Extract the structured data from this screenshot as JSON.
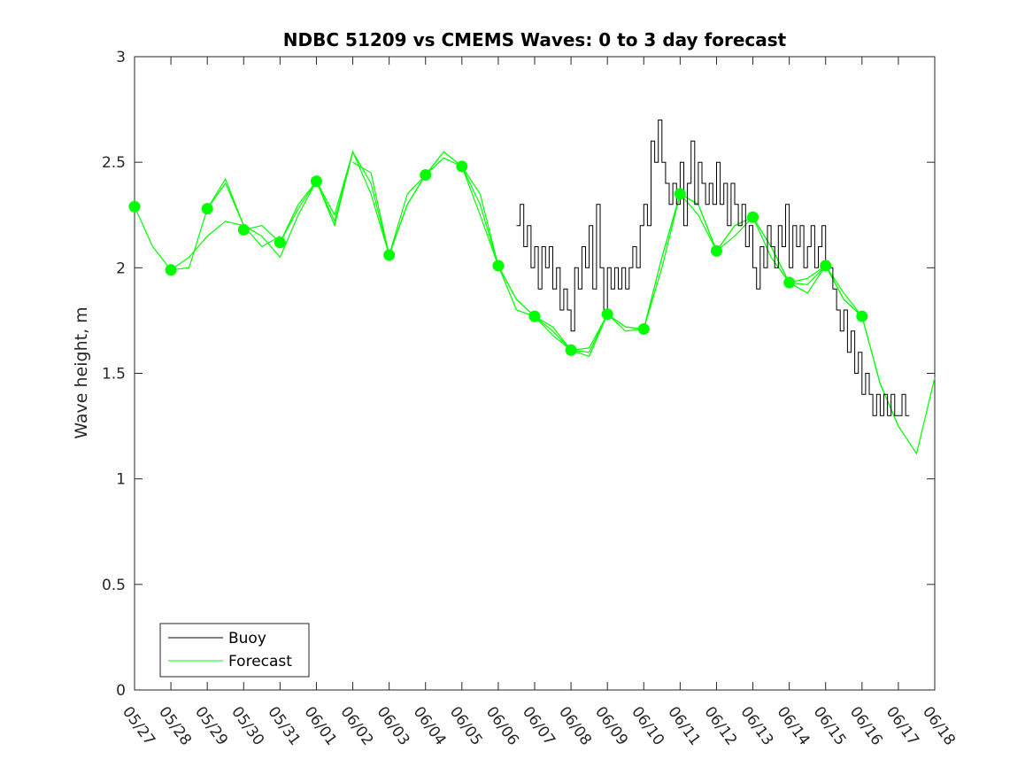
{
  "chart_data": {
    "type": "line",
    "title": "NDBC 51209 vs CMEMS Waves: 0 to 3 day forecast",
    "xlabel": "",
    "ylabel": "Wave height, m",
    "x_tick_labels": [
      "05/27",
      "05/28",
      "05/29",
      "05/30",
      "05/31",
      "06/01",
      "06/02",
      "06/03",
      "06/04",
      "06/05",
      "06/06",
      "06/07",
      "06/08",
      "06/09",
      "06/10",
      "06/11",
      "06/12",
      "06/13",
      "06/14",
      "06/15",
      "06/16",
      "06/17",
      "06/18"
    ],
    "y_tick_labels": [
      "0",
      "0.5",
      "1",
      "1.5",
      "2",
      "2.5",
      "3"
    ],
    "ylim": [
      0,
      3
    ],
    "xlim_days": [
      0,
      22
    ],
    "grid": false,
    "legend": {
      "placement": "bottom-left",
      "entries": [
        "Buoy",
        "Forecast"
      ]
    },
    "colors": {
      "buoy": "#000000",
      "forecast": "#00ff00"
    },
    "series": [
      {
        "name": "Buoy",
        "x": [
          10.5,
          10.6,
          10.7,
          10.8,
          10.9,
          11.0,
          11.1,
          11.2,
          11.3,
          11.4,
          11.5,
          11.6,
          11.7,
          11.8,
          11.9,
          12.0,
          12.1,
          12.2,
          12.3,
          12.4,
          12.5,
          12.6,
          12.7,
          12.8,
          12.9,
          13.0,
          13.1,
          13.2,
          13.3,
          13.4,
          13.5,
          13.6,
          13.7,
          13.8,
          13.9,
          14.0,
          14.1,
          14.2,
          14.3,
          14.4,
          14.5,
          14.6,
          14.7,
          14.8,
          14.9,
          15.0,
          15.1,
          15.2,
          15.3,
          15.4,
          15.5,
          15.6,
          15.7,
          15.8,
          15.9,
          16.0,
          16.1,
          16.2,
          16.3,
          16.4,
          16.5,
          16.6,
          16.7,
          16.8,
          16.9,
          17.0,
          17.1,
          17.2,
          17.3,
          17.4,
          17.5,
          17.6,
          17.7,
          17.8,
          17.9,
          18.0,
          18.1,
          18.2,
          18.3,
          18.4,
          18.5,
          18.6,
          18.7,
          18.8,
          18.9,
          19.0,
          19.1,
          19.2,
          19.3,
          19.4,
          19.5,
          19.6,
          19.7,
          19.8,
          19.9,
          20.0,
          20.1,
          20.2,
          20.3,
          20.4,
          20.5,
          20.6,
          20.7,
          20.8,
          20.9,
          21.0,
          21.1,
          21.2,
          21.3
        ],
        "y": [
          2.2,
          2.3,
          2.1,
          2.2,
          2.0,
          2.1,
          1.9,
          2.1,
          2.0,
          2.1,
          1.9,
          2.0,
          1.8,
          1.9,
          1.8,
          1.7,
          2.0,
          1.9,
          2.1,
          2.0,
          2.2,
          1.9,
          2.3,
          2.0,
          1.8,
          2.0,
          1.9,
          2.0,
          1.9,
          2.0,
          1.9,
          2.0,
          2.1,
          2.0,
          2.2,
          2.3,
          2.2,
          2.6,
          2.5,
          2.7,
          2.5,
          2.4,
          2.3,
          2.4,
          2.3,
          2.5,
          2.2,
          2.4,
          2.6,
          2.3,
          2.5,
          2.4,
          2.3,
          2.4,
          2.3,
          2.5,
          2.3,
          2.4,
          2.2,
          2.4,
          2.3,
          2.2,
          2.3,
          2.1,
          2.2,
          2.0,
          1.9,
          2.1,
          2.0,
          2.2,
          2.1,
          2.0,
          2.2,
          2.1,
          2.3,
          2.0,
          2.2,
          2.1,
          2.2,
          2.0,
          2.1,
          2.2,
          2.0,
          2.1,
          2.2,
          2.0,
          2.0,
          1.9,
          1.8,
          1.7,
          1.8,
          1.6,
          1.7,
          1.5,
          1.6,
          1.4,
          1.5,
          1.4,
          1.3,
          1.4,
          1.3,
          1.4,
          1.3,
          1.4,
          1.3,
          1.3,
          1.4,
          1.3,
          1.3
        ]
      },
      {
        "name": "Forecast",
        "runs": [
          {
            "x": [
              0,
              0.5,
              1,
              1.5,
              2,
              2.5,
              3
            ],
            "y": [
              2.29,
              2.1,
              1.99,
              2.05,
              2.15,
              2.22,
              2.2
            ]
          },
          {
            "x": [
              1,
              1.5,
              2,
              2.5,
              3,
              3.5,
              4
            ],
            "y": [
              1.99,
              2.0,
              2.28,
              2.4,
              2.2,
              2.1,
              2.15
            ]
          },
          {
            "x": [
              2,
              2.5,
              3,
              3.5,
              4,
              4.5,
              5
            ],
            "y": [
              2.28,
              2.42,
              2.2,
              2.15,
              2.05,
              2.25,
              2.41
            ]
          },
          {
            "x": [
              3,
              3.5,
              4,
              4.5,
              5,
              5.5,
              6
            ],
            "y": [
              2.18,
              2.2,
              2.12,
              2.3,
              2.41,
              2.25,
              2.55
            ]
          },
          {
            "x": [
              4,
              4.5,
              5,
              5.5,
              6,
              6.5,
              7
            ],
            "y": [
              2.12,
              2.28,
              2.41,
              2.2,
              2.55,
              2.4,
              2.06
            ]
          },
          {
            "x": [
              5,
              5.5,
              6,
              6.5,
              7,
              7.5,
              8
            ],
            "y": [
              2.41,
              2.22,
              2.55,
              2.35,
              2.06,
              2.35,
              2.44
            ]
          },
          {
            "x": [
              6,
              6.5,
              7,
              7.5,
              8,
              8.5,
              9
            ],
            "y": [
              2.5,
              2.45,
              2.06,
              2.3,
              2.44,
              2.55,
              2.48
            ]
          },
          {
            "x": [
              7,
              7.5,
              8,
              8.5,
              9,
              9.5,
              10
            ],
            "y": [
              2.06,
              2.3,
              2.44,
              2.55,
              2.48,
              2.25,
              2.01
            ]
          },
          {
            "x": [
              8,
              8.5,
              9,
              9.5,
              10,
              10.5,
              11
            ],
            "y": [
              2.44,
              2.52,
              2.48,
              2.3,
              2.01,
              1.85,
              1.77
            ]
          },
          {
            "x": [
              9,
              9.5,
              10,
              10.5,
              11,
              11.5,
              12
            ],
            "y": [
              2.48,
              2.35,
              2.01,
              1.8,
              1.77,
              1.72,
              1.61
            ]
          },
          {
            "x": [
              10,
              10.5,
              11,
              11.5,
              12,
              12.5,
              13
            ],
            "y": [
              2.01,
              1.85,
              1.77,
              1.68,
              1.61,
              1.58,
              1.78
            ]
          },
          {
            "x": [
              11,
              11.5,
              12,
              12.5,
              13,
              13.5,
              14
            ],
            "y": [
              1.77,
              1.7,
              1.61,
              1.62,
              1.78,
              1.72,
              1.71
            ]
          },
          {
            "x": [
              12,
              12.5,
              13,
              13.5,
              14,
              14.5,
              15
            ],
            "y": [
              1.61,
              1.6,
              1.78,
              1.7,
              1.71,
              2.0,
              2.35
            ]
          },
          {
            "x": [
              13,
              13.5,
              14,
              14.5,
              15,
              15.5,
              16
            ],
            "y": [
              1.78,
              1.72,
              1.71,
              2.05,
              2.35,
              2.25,
              2.08
            ]
          },
          {
            "x": [
              14,
              14.5,
              15,
              15.5,
              16,
              16.5,
              17
            ],
            "y": [
              1.71,
              2.05,
              2.35,
              2.3,
              2.08,
              2.2,
              2.24
            ]
          },
          {
            "x": [
              15,
              15.5,
              16,
              16.5,
              17,
              17.5,
              18
            ],
            "y": [
              2.35,
              2.3,
              2.08,
              2.2,
              2.24,
              2.1,
              1.93
            ]
          },
          {
            "x": [
              16,
              16.5,
              17,
              17.5,
              18,
              18.5,
              19
            ],
            "y": [
              2.08,
              2.15,
              2.24,
              2.1,
              1.93,
              1.95,
              2.01
            ]
          },
          {
            "x": [
              17,
              17.5,
              18,
              18.5,
              19,
              19.5,
              20
            ],
            "y": [
              2.24,
              2.05,
              1.93,
              1.92,
              2.01,
              1.88,
              1.77
            ]
          },
          {
            "x": [
              18,
              18.5,
              19,
              19.5,
              20,
              20.5,
              21
            ],
            "y": [
              1.93,
              1.88,
              2.01,
              1.85,
              1.77,
              1.45,
              1.25
            ]
          },
          {
            "x": [
              19,
              19.5,
              20,
              20.5,
              21,
              21.5,
              22
            ],
            "y": [
              2.01,
              1.85,
              1.77,
              1.45,
              1.25,
              1.12,
              1.48
            ]
          }
        ],
        "markers": {
          "x": [
            0,
            1,
            2,
            3,
            4,
            5,
            7,
            8,
            9,
            10,
            11,
            12,
            13,
            14,
            15,
            16,
            17,
            18,
            19,
            20
          ],
          "y": [
            2.29,
            1.99,
            2.28,
            2.18,
            2.12,
            2.41,
            2.06,
            2.44,
            2.48,
            2.01,
            1.77,
            1.61,
            1.78,
            1.71,
            2.35,
            2.08,
            2.24,
            1.93,
            2.01,
            1.77
          ]
        }
      }
    ]
  }
}
